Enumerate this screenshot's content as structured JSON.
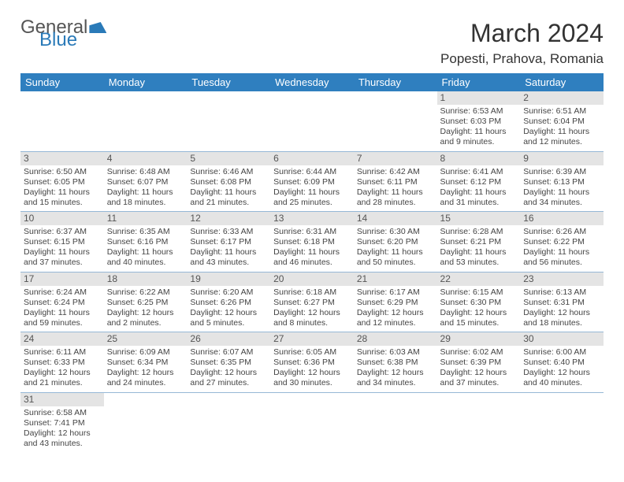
{
  "logo": {
    "part1": "General",
    "part2": "Blue"
  },
  "title": "March 2024",
  "location": "Popesti, Prahova, Romania",
  "colors": {
    "header_bg": "#2f7fbf",
    "header_fg": "#ffffff",
    "daynum_bg": "#e4e4e4",
    "border": "#96b8d6",
    "logo_blue": "#2a7ab8"
  },
  "day_headers": [
    "Sunday",
    "Monday",
    "Tuesday",
    "Wednesday",
    "Thursday",
    "Friday",
    "Saturday"
  ],
  "weeks": [
    [
      null,
      null,
      null,
      null,
      null,
      {
        "n": "1",
        "sr": "Sunrise: 6:53 AM",
        "ss": "Sunset: 6:03 PM",
        "d1": "Daylight: 11 hours",
        "d2": "and 9 minutes."
      },
      {
        "n": "2",
        "sr": "Sunrise: 6:51 AM",
        "ss": "Sunset: 6:04 PM",
        "d1": "Daylight: 11 hours",
        "d2": "and 12 minutes."
      }
    ],
    [
      {
        "n": "3",
        "sr": "Sunrise: 6:50 AM",
        "ss": "Sunset: 6:05 PM",
        "d1": "Daylight: 11 hours",
        "d2": "and 15 minutes."
      },
      {
        "n": "4",
        "sr": "Sunrise: 6:48 AM",
        "ss": "Sunset: 6:07 PM",
        "d1": "Daylight: 11 hours",
        "d2": "and 18 minutes."
      },
      {
        "n": "5",
        "sr": "Sunrise: 6:46 AM",
        "ss": "Sunset: 6:08 PM",
        "d1": "Daylight: 11 hours",
        "d2": "and 21 minutes."
      },
      {
        "n": "6",
        "sr": "Sunrise: 6:44 AM",
        "ss": "Sunset: 6:09 PM",
        "d1": "Daylight: 11 hours",
        "d2": "and 25 minutes."
      },
      {
        "n": "7",
        "sr": "Sunrise: 6:42 AM",
        "ss": "Sunset: 6:11 PM",
        "d1": "Daylight: 11 hours",
        "d2": "and 28 minutes."
      },
      {
        "n": "8",
        "sr": "Sunrise: 6:41 AM",
        "ss": "Sunset: 6:12 PM",
        "d1": "Daylight: 11 hours",
        "d2": "and 31 minutes."
      },
      {
        "n": "9",
        "sr": "Sunrise: 6:39 AM",
        "ss": "Sunset: 6:13 PM",
        "d1": "Daylight: 11 hours",
        "d2": "and 34 minutes."
      }
    ],
    [
      {
        "n": "10",
        "sr": "Sunrise: 6:37 AM",
        "ss": "Sunset: 6:15 PM",
        "d1": "Daylight: 11 hours",
        "d2": "and 37 minutes."
      },
      {
        "n": "11",
        "sr": "Sunrise: 6:35 AM",
        "ss": "Sunset: 6:16 PM",
        "d1": "Daylight: 11 hours",
        "d2": "and 40 minutes."
      },
      {
        "n": "12",
        "sr": "Sunrise: 6:33 AM",
        "ss": "Sunset: 6:17 PM",
        "d1": "Daylight: 11 hours",
        "d2": "and 43 minutes."
      },
      {
        "n": "13",
        "sr": "Sunrise: 6:31 AM",
        "ss": "Sunset: 6:18 PM",
        "d1": "Daylight: 11 hours",
        "d2": "and 46 minutes."
      },
      {
        "n": "14",
        "sr": "Sunrise: 6:30 AM",
        "ss": "Sunset: 6:20 PM",
        "d1": "Daylight: 11 hours",
        "d2": "and 50 minutes."
      },
      {
        "n": "15",
        "sr": "Sunrise: 6:28 AM",
        "ss": "Sunset: 6:21 PM",
        "d1": "Daylight: 11 hours",
        "d2": "and 53 minutes."
      },
      {
        "n": "16",
        "sr": "Sunrise: 6:26 AM",
        "ss": "Sunset: 6:22 PM",
        "d1": "Daylight: 11 hours",
        "d2": "and 56 minutes."
      }
    ],
    [
      {
        "n": "17",
        "sr": "Sunrise: 6:24 AM",
        "ss": "Sunset: 6:24 PM",
        "d1": "Daylight: 11 hours",
        "d2": "and 59 minutes."
      },
      {
        "n": "18",
        "sr": "Sunrise: 6:22 AM",
        "ss": "Sunset: 6:25 PM",
        "d1": "Daylight: 12 hours",
        "d2": "and 2 minutes."
      },
      {
        "n": "19",
        "sr": "Sunrise: 6:20 AM",
        "ss": "Sunset: 6:26 PM",
        "d1": "Daylight: 12 hours",
        "d2": "and 5 minutes."
      },
      {
        "n": "20",
        "sr": "Sunrise: 6:18 AM",
        "ss": "Sunset: 6:27 PM",
        "d1": "Daylight: 12 hours",
        "d2": "and 8 minutes."
      },
      {
        "n": "21",
        "sr": "Sunrise: 6:17 AM",
        "ss": "Sunset: 6:29 PM",
        "d1": "Daylight: 12 hours",
        "d2": "and 12 minutes."
      },
      {
        "n": "22",
        "sr": "Sunrise: 6:15 AM",
        "ss": "Sunset: 6:30 PM",
        "d1": "Daylight: 12 hours",
        "d2": "and 15 minutes."
      },
      {
        "n": "23",
        "sr": "Sunrise: 6:13 AM",
        "ss": "Sunset: 6:31 PM",
        "d1": "Daylight: 12 hours",
        "d2": "and 18 minutes."
      }
    ],
    [
      {
        "n": "24",
        "sr": "Sunrise: 6:11 AM",
        "ss": "Sunset: 6:33 PM",
        "d1": "Daylight: 12 hours",
        "d2": "and 21 minutes."
      },
      {
        "n": "25",
        "sr": "Sunrise: 6:09 AM",
        "ss": "Sunset: 6:34 PM",
        "d1": "Daylight: 12 hours",
        "d2": "and 24 minutes."
      },
      {
        "n": "26",
        "sr": "Sunrise: 6:07 AM",
        "ss": "Sunset: 6:35 PM",
        "d1": "Daylight: 12 hours",
        "d2": "and 27 minutes."
      },
      {
        "n": "27",
        "sr": "Sunrise: 6:05 AM",
        "ss": "Sunset: 6:36 PM",
        "d1": "Daylight: 12 hours",
        "d2": "and 30 minutes."
      },
      {
        "n": "28",
        "sr": "Sunrise: 6:03 AM",
        "ss": "Sunset: 6:38 PM",
        "d1": "Daylight: 12 hours",
        "d2": "and 34 minutes."
      },
      {
        "n": "29",
        "sr": "Sunrise: 6:02 AM",
        "ss": "Sunset: 6:39 PM",
        "d1": "Daylight: 12 hours",
        "d2": "and 37 minutes."
      },
      {
        "n": "30",
        "sr": "Sunrise: 6:00 AM",
        "ss": "Sunset: 6:40 PM",
        "d1": "Daylight: 12 hours",
        "d2": "and 40 minutes."
      }
    ],
    [
      {
        "n": "31",
        "sr": "Sunrise: 6:58 AM",
        "ss": "Sunset: 7:41 PM",
        "d1": "Daylight: 12 hours",
        "d2": "and 43 minutes."
      },
      null,
      null,
      null,
      null,
      null,
      null
    ]
  ]
}
